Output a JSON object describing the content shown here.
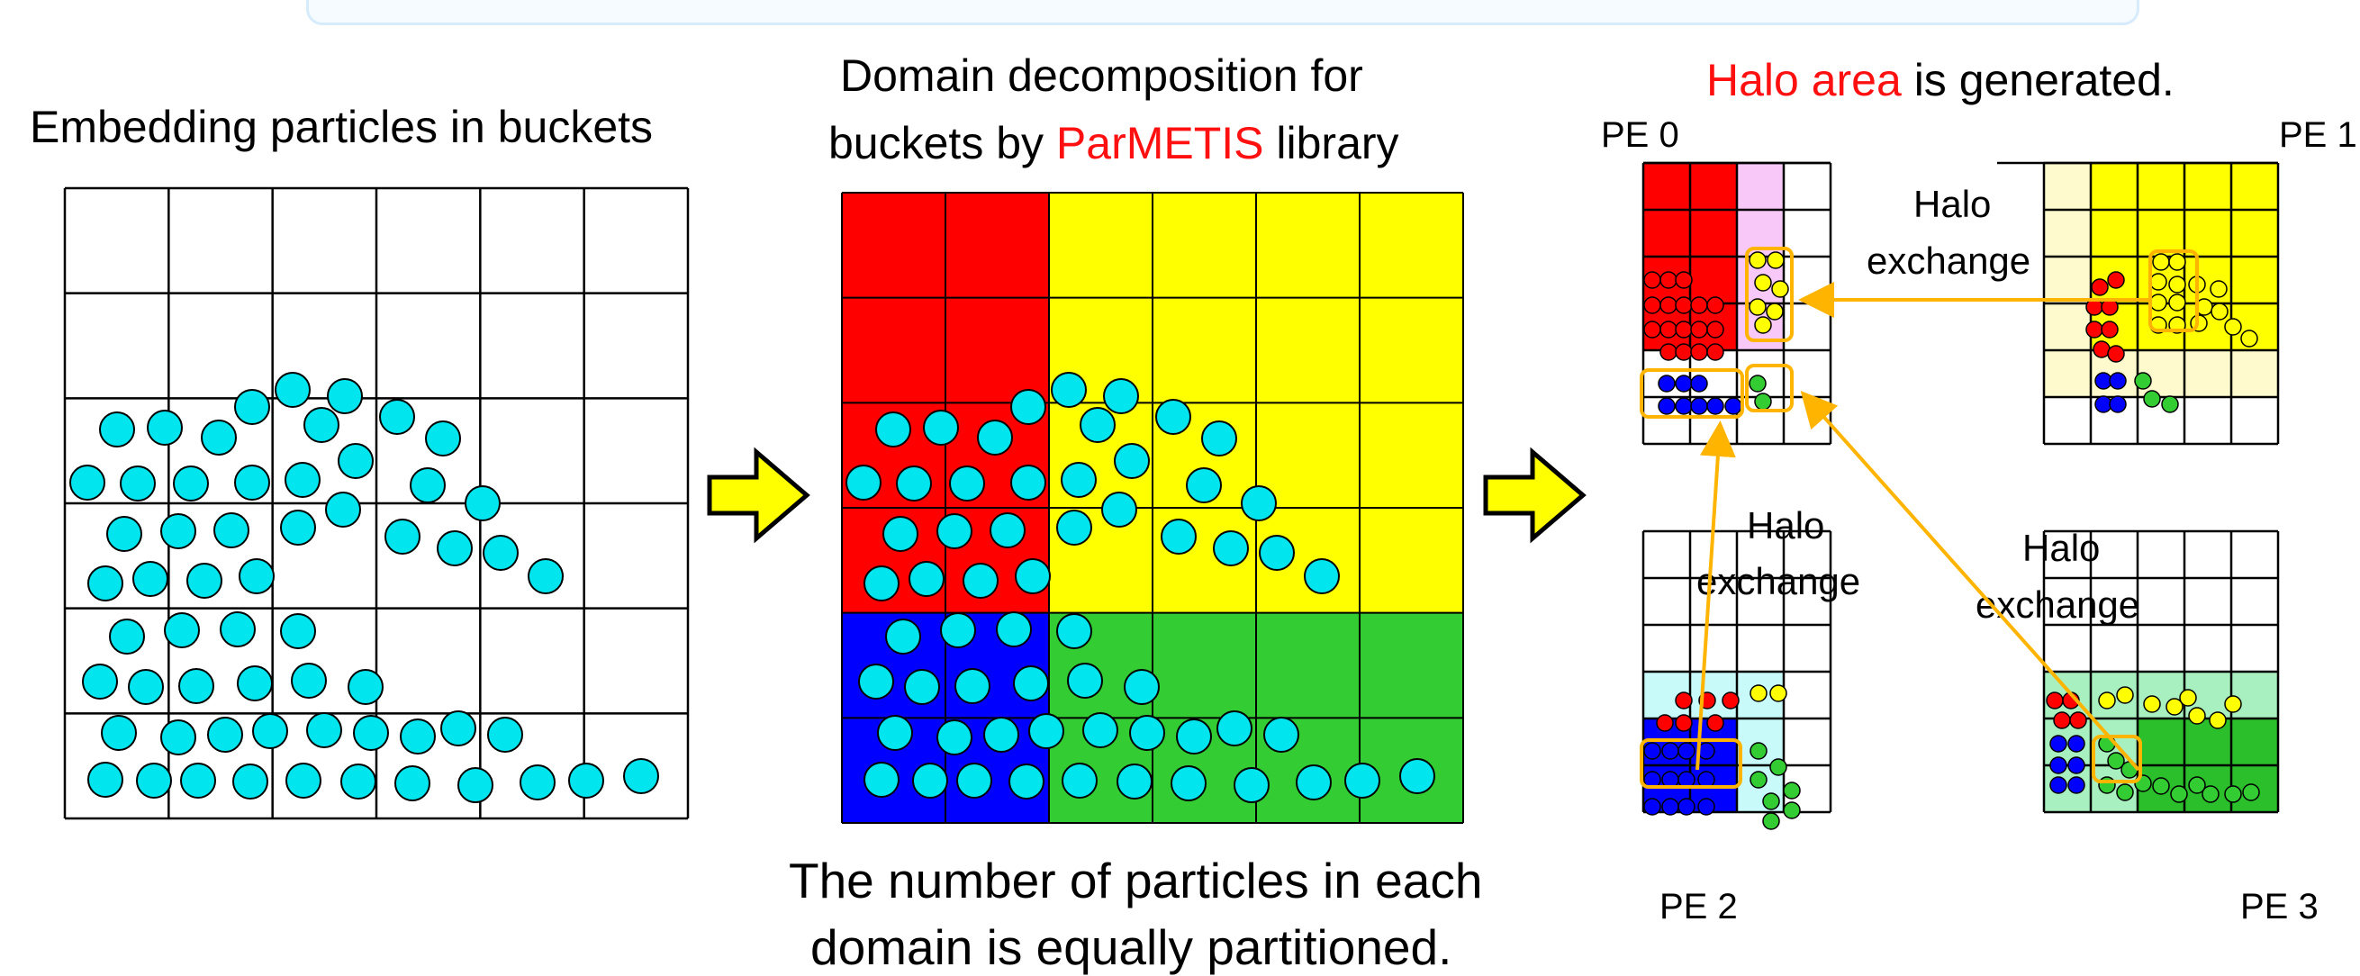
{
  "left_panel": {
    "title": "Embedding particles in buckets"
  },
  "middle_panel": {
    "title_line1": "Domain decomposition for",
    "title_line2_pre": "buckets by ",
    "title_line2_highlight": "ParMETIS",
    "title_line2_post": " library",
    "caption_line1": "The number of particles in each",
    "caption_line2": "domain is equally partitioned."
  },
  "right_panel": {
    "title_highlight": "Halo area",
    "title_rest": " is generated.",
    "pe_labels": [
      "PE 0",
      "PE 1",
      "PE 2",
      "PE 3"
    ],
    "exchange_labels": [
      {
        "line1": "Halo",
        "line2": "exchange"
      },
      {
        "line1": "Halo",
        "line2": "exchange"
      },
      {
        "line1": "Halo",
        "line2": "exchange"
      }
    ]
  },
  "colors": {
    "particle": "#00e5ee",
    "red_domain": "#ff0000",
    "yellow_domain": "#ffff00",
    "blue_domain": "#0000ff",
    "green_domain": "#33cc33",
    "halo_pink": "#f8c8f8",
    "halo_yellow": "#fffacd",
    "halo_cyan": "#c8fafa",
    "halo_green": "#a8f0c0",
    "arrow": "#ffb400",
    "highlight_text": "#ff1010"
  },
  "icons": [
    "right-arrow-icon",
    "right-arrow-icon"
  ]
}
